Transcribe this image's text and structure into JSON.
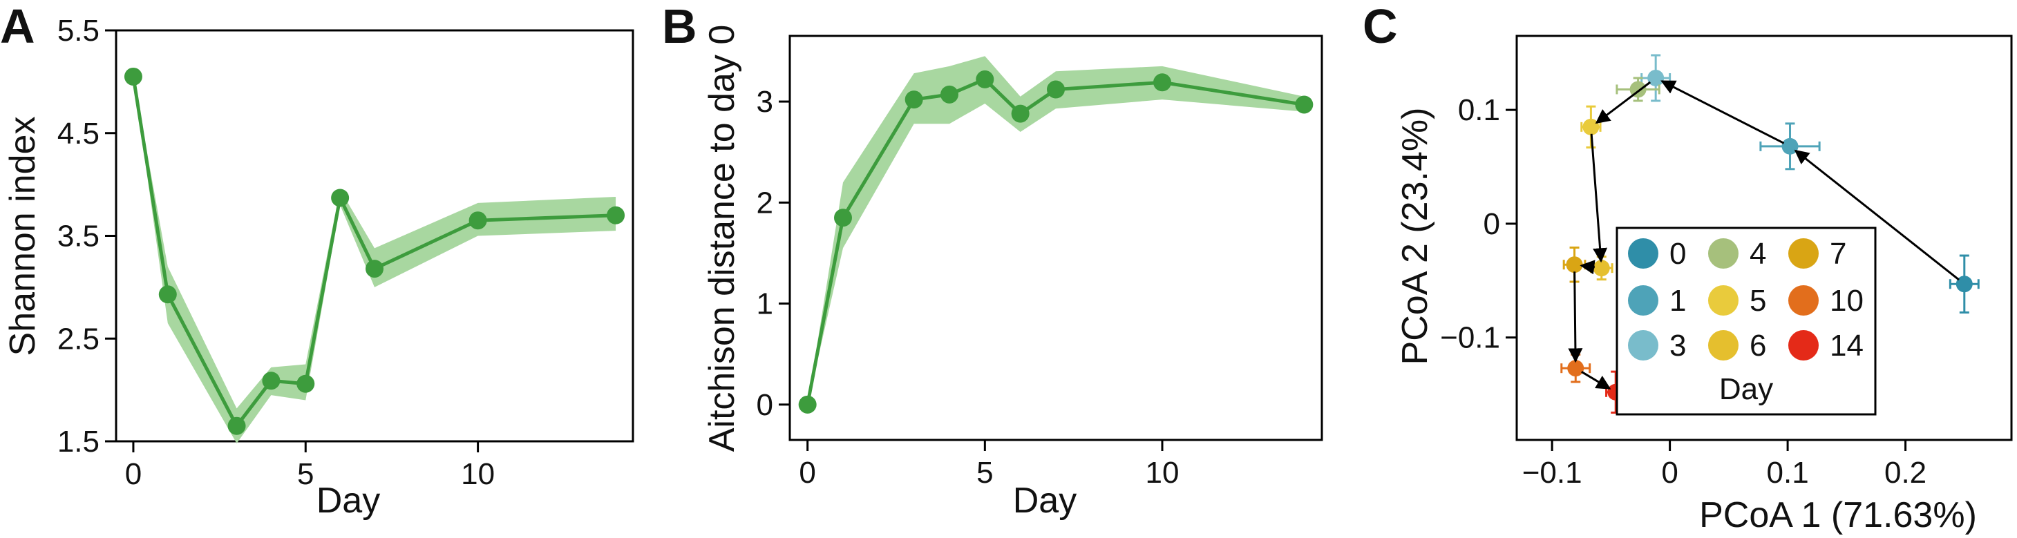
{
  "panels": [
    {
      "letter": "A"
    },
    {
      "letter": "B"
    },
    {
      "letter": "C"
    }
  ],
  "chart_data": [
    {
      "type": "line",
      "panel": "A",
      "xlabel": "Day",
      "ylabel": "Shannon index",
      "xlim": [
        -0.5,
        14.5
      ],
      "ylim": [
        1.5,
        5.5
      ],
      "xticks": [
        0,
        5,
        10
      ],
      "yticks": [
        1.5,
        2.5,
        3.5,
        4.5,
        5.5
      ],
      "ytick_labels": [
        "1.5",
        "2.5",
        "3.5",
        "4.5",
        "5.5"
      ],
      "grid": false,
      "line_color": "#3d9c3d",
      "band_color": "#a8d7a0",
      "x": [
        0,
        1,
        3,
        4,
        5,
        6,
        7,
        10,
        14
      ],
      "y": [
        5.05,
        2.93,
        1.65,
        2.09,
        2.06,
        3.87,
        3.18,
        3.65,
        3.7
      ],
      "band_low": [
        5.05,
        2.65,
        1.48,
        1.95,
        1.9,
        3.8,
        3.0,
        3.5,
        3.55
      ],
      "band_high": [
        5.05,
        3.2,
        1.82,
        2.22,
        2.25,
        3.95,
        3.38,
        3.82,
        3.88
      ]
    },
    {
      "type": "line",
      "panel": "B",
      "xlabel": "Day",
      "ylabel": "Aitchison distance to day 0",
      "xlim": [
        -0.5,
        14.5
      ],
      "ylim": [
        -0.35,
        3.65
      ],
      "xticks": [
        0,
        5,
        10
      ],
      "yticks": [
        0,
        1,
        2,
        3
      ],
      "ytick_labels": [
        "0",
        "1",
        "2",
        "3"
      ],
      "grid": false,
      "line_color": "#3d9c3d",
      "band_color": "#a8d7a0",
      "x": [
        0,
        1,
        3,
        4,
        5,
        6,
        7,
        10,
        14
      ],
      "y": [
        0.0,
        1.85,
        3.02,
        3.07,
        3.22,
        2.88,
        3.12,
        3.19,
        2.97
      ],
      "band_low": [
        0.0,
        1.55,
        2.78,
        2.78,
        2.98,
        2.7,
        2.93,
        3.02,
        2.9
      ],
      "band_high": [
        0.0,
        2.2,
        3.28,
        3.35,
        3.45,
        3.05,
        3.3,
        3.35,
        3.05
      ]
    },
    {
      "type": "scatter",
      "panel": "C",
      "xlabel": "PCoA 1 (71.63%)",
      "ylabel": "PCoA 2 (23.4%)",
      "xlim": [
        -0.13,
        0.29
      ],
      "ylim": [
        -0.19,
        0.165
      ],
      "xticks": [
        -0.1,
        0.0,
        0.1,
        0.2
      ],
      "xtick_labels": [
        "−0.1",
        "0",
        "0.1",
        "0.2"
      ],
      "yticks": [
        -0.1,
        0.0,
        0.1
      ],
      "ytick_labels": [
        "−0.1",
        "0",
        "0.1"
      ],
      "grid": false,
      "legend_title": "Day",
      "legend_position": "bottom-left",
      "points": [
        {
          "day": "0",
          "x": 0.25,
          "y": -0.053,
          "xerr": 0.012,
          "yerr": 0.025,
          "color": "#2f8ea8"
        },
        {
          "day": "1",
          "x": 0.102,
          "y": 0.068,
          "xerr": 0.025,
          "yerr": 0.02,
          "color": "#4ea3b8"
        },
        {
          "day": "3",
          "x": -0.012,
          "y": 0.128,
          "xerr": 0.012,
          "yerr": 0.02,
          "color": "#79bccb"
        },
        {
          "day": "4",
          "x": -0.027,
          "y": 0.118,
          "xerr": 0.018,
          "yerr": 0.01,
          "color": "#a6c07c"
        },
        {
          "day": "5",
          "x": -0.067,
          "y": 0.085,
          "xerr": 0.008,
          "yerr": 0.018,
          "color": "#e9cb3c"
        },
        {
          "day": "6",
          "x": -0.058,
          "y": -0.039,
          "xerr": 0.009,
          "yerr": 0.01,
          "color": "#e5bf2e"
        },
        {
          "day": "7",
          "x": -0.081,
          "y": -0.036,
          "xerr": 0.009,
          "yerr": 0.015,
          "color": "#d9a514"
        },
        {
          "day": "10",
          "x": -0.08,
          "y": -0.127,
          "xerr": 0.012,
          "yerr": 0.012,
          "color": "#e26e1c"
        },
        {
          "day": "14",
          "x": -0.046,
          "y": -0.148,
          "xerr": 0.008,
          "yerr": 0.018,
          "color": "#e42a18"
        }
      ],
      "path_order": [
        "0",
        "1",
        "3",
        "5",
        "6",
        "7",
        "10",
        "14"
      ],
      "legend": [
        {
          "label": "0",
          "color": "#2f8ea8"
        },
        {
          "label": "4",
          "color": "#a6c07c"
        },
        {
          "label": "7",
          "color": "#d9a514"
        },
        {
          "label": "1",
          "color": "#4ea3b8"
        },
        {
          "label": "5",
          "color": "#e9cb3c"
        },
        {
          "label": "10",
          "color": "#e26e1c"
        },
        {
          "label": "3",
          "color": "#79bccb"
        },
        {
          "label": "6",
          "color": "#e5bf2e"
        },
        {
          "label": "14",
          "color": "#e42a18"
        }
      ]
    }
  ]
}
